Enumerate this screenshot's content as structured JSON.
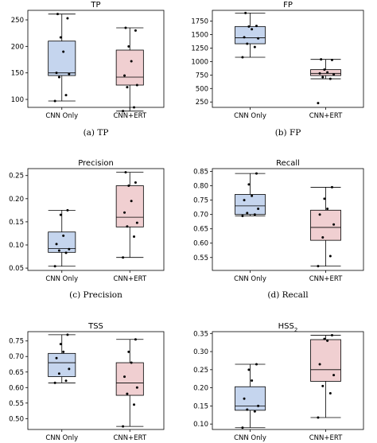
{
  "chart_data": [
    {
      "type": "box",
      "caption": "(a) TP",
      "title": "TP",
      "categories": [
        "CNN Only",
        "CNN+ERT"
      ],
      "ylim": [
        85,
        268
      ],
      "yticks": [
        100,
        150,
        200,
        250
      ],
      "yticklabels": [
        "100",
        "150",
        "200",
        "250"
      ],
      "boxes": [
        {
          "whislo": 97,
          "q1": 145,
          "med": 150,
          "q3": 210,
          "whishi": 261,
          "points": [
            97,
            108,
            142,
            148,
            150,
            190,
            217,
            253,
            261
          ]
        },
        {
          "whislo": 78,
          "q1": 127,
          "med": 142,
          "q3": 193,
          "whishi": 235,
          "points": [
            78,
            85,
            123,
            127,
            145,
            172,
            200,
            230,
            235
          ]
        }
      ],
      "colors": [
        "#c5d5ee",
        "#f0cfd1"
      ]
    },
    {
      "type": "box",
      "caption": "(b) FP",
      "title": "FP",
      "categories": [
        "CNN Only",
        "CNN+ERT"
      ],
      "ylim": [
        150,
        1950
      ],
      "yticks": [
        250,
        500,
        750,
        1000,
        1250,
        1500,
        1750
      ],
      "yticklabels": [
        "250",
        "500",
        "750",
        "1000",
        "1250",
        "1500",
        "1750"
      ],
      "boxes": [
        {
          "whislo": 1080,
          "q1": 1330,
          "med": 1440,
          "q3": 1650,
          "whishi": 1900,
          "points": [
            1080,
            1270,
            1330,
            1430,
            1450,
            1600,
            1650,
            1660,
            1900
          ]
        },
        {
          "whislo": 680,
          "q1": 740,
          "med": 780,
          "q3": 850,
          "whishi": 1040,
          "points": [
            230,
            680,
            710,
            760,
            780,
            800,
            850,
            1030,
            1040
          ]
        }
      ],
      "colors": [
        "#c5d5ee",
        "#f0cfd1"
      ]
    },
    {
      "type": "box",
      "caption": "(c) Precision",
      "title": "Precision",
      "categories": [
        "CNN Only",
        "CNN+ERT"
      ],
      "ylim": [
        0.045,
        0.265
      ],
      "yticks": [
        0.05,
        0.1,
        0.15,
        0.2,
        0.25
      ],
      "yticklabels": [
        "0.05",
        "0.10",
        "0.15",
        "0.20",
        "0.25"
      ],
      "boxes": [
        {
          "whislo": 0.054,
          "q1": 0.084,
          "med": 0.092,
          "q3": 0.128,
          "whishi": 0.175,
          "points": [
            0.054,
            0.083,
            0.088,
            0.091,
            0.102,
            0.12,
            0.165,
            0.175
          ]
        },
        {
          "whislo": 0.073,
          "q1": 0.139,
          "med": 0.16,
          "q3": 0.228,
          "whishi": 0.257,
          "points": [
            0.073,
            0.118,
            0.14,
            0.148,
            0.17,
            0.195,
            0.228,
            0.235,
            0.257
          ]
        }
      ],
      "colors": [
        "#c5d5ee",
        "#f0cfd1"
      ]
    },
    {
      "type": "box",
      "caption": "(d) Recall",
      "title": "Recall",
      "categories": [
        "CNN Only",
        "CNN+ERT"
      ],
      "ylim": [
        0.505,
        0.86
      ],
      "yticks": [
        0.55,
        0.6,
        0.65,
        0.7,
        0.75,
        0.8,
        0.85
      ],
      "yticklabels": [
        "0.55",
        "0.60",
        "0.65",
        "0.70",
        "0.75",
        "0.80",
        "0.85"
      ],
      "boxes": [
        {
          "whislo": 0.695,
          "q1": 0.7,
          "med": 0.73,
          "q3": 0.77,
          "whishi": 0.843,
          "points": [
            0.695,
            0.7,
            0.705,
            0.72,
            0.75,
            0.765,
            0.805,
            0.843
          ]
        },
        {
          "whislo": 0.52,
          "q1": 0.61,
          "med": 0.655,
          "q3": 0.715,
          "whishi": 0.795,
          "points": [
            0.52,
            0.555,
            0.62,
            0.665,
            0.7,
            0.72,
            0.755,
            0.795
          ]
        }
      ],
      "colors": [
        "#c5d5ee",
        "#f0cfd1"
      ]
    },
    {
      "type": "box",
      "caption": "",
      "title": "TSS",
      "categories": [
        "CNN Only",
        "CNN+ERT"
      ],
      "ylim": [
        0.465,
        0.78
      ],
      "yticks": [
        0.5,
        0.55,
        0.6,
        0.65,
        0.7,
        0.75
      ],
      "yticklabels": [
        "0.50",
        "0.55",
        "0.60",
        "0.65",
        "0.70",
        "0.75"
      ],
      "boxes": [
        {
          "whislo": 0.615,
          "q1": 0.635,
          "med": 0.68,
          "q3": 0.71,
          "whishi": 0.77,
          "points": [
            0.615,
            0.622,
            0.645,
            0.66,
            0.695,
            0.715,
            0.74,
            0.77
          ]
        },
        {
          "whislo": 0.475,
          "q1": 0.575,
          "med": 0.615,
          "q3": 0.68,
          "whishi": 0.755,
          "points": [
            0.475,
            0.545,
            0.58,
            0.6,
            0.635,
            0.68,
            0.715,
            0.755
          ]
        }
      ],
      "colors": [
        "#c5d5ee",
        "#f0cfd1"
      ]
    },
    {
      "type": "box",
      "caption": "",
      "title": "HSS",
      "title_sub": "2",
      "categories": [
        "CNN Only",
        "CNN+ERT"
      ],
      "ylim": [
        0.085,
        0.355
      ],
      "yticks": [
        0.1,
        0.15,
        0.2,
        0.25,
        0.3,
        0.35
      ],
      "yticklabels": [
        "0.10",
        "0.15",
        "0.20",
        "0.25",
        "0.30",
        "0.35"
      ],
      "boxes": [
        {
          "whislo": 0.09,
          "q1": 0.138,
          "med": 0.15,
          "q3": 0.203,
          "whishi": 0.265,
          "points": [
            0.09,
            0.135,
            0.14,
            0.15,
            0.17,
            0.22,
            0.25,
            0.265
          ]
        },
        {
          "whislo": 0.118,
          "q1": 0.218,
          "med": 0.25,
          "q3": 0.333,
          "whishi": 0.345,
          "points": [
            0.118,
            0.185,
            0.205,
            0.235,
            0.265,
            0.33,
            0.335,
            0.345
          ]
        }
      ],
      "colors": [
        "#c5d5ee",
        "#f0cfd1"
      ]
    }
  ]
}
